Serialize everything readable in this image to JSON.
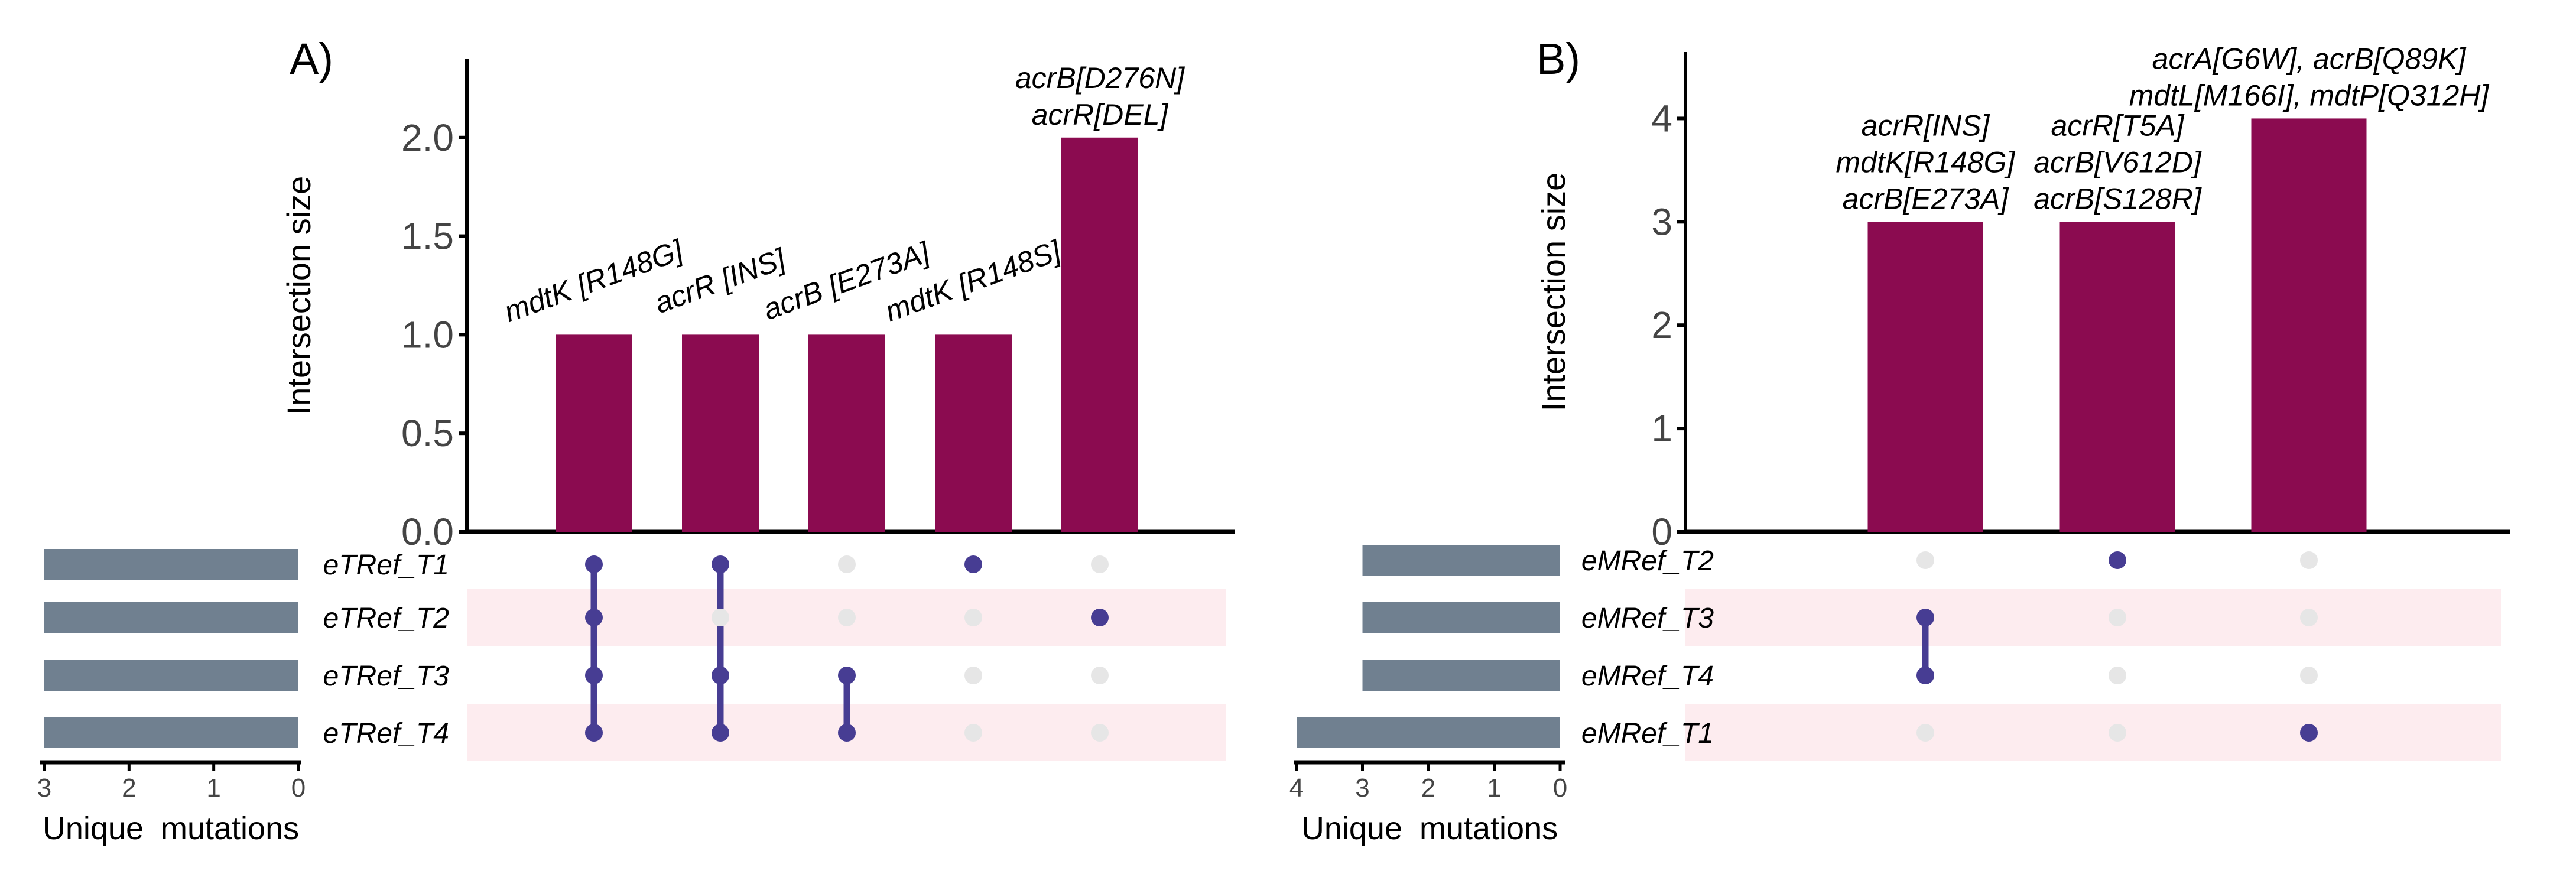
{
  "colors": {
    "bar": "#8b0b50",
    "setbar": "#708090",
    "dot_active": "#473d93",
    "dot_inactive": "#e6e6e6",
    "stripe": "#fdecef"
  },
  "chart_data": [
    {
      "type": "bar",
      "panel_letter": "A)",
      "ylabel": "Intersection size",
      "ylim": [
        0,
        2.35
      ],
      "yticks": [
        "0.0",
        "0.5",
        "1.0",
        "1.5",
        "2.0"
      ],
      "categories": [
        "mdtK [R148G]",
        "acrR [INS]",
        "acrB [E273A]",
        "mdtK [R148S]",
        "acrB[D276N] acrR[DEL]"
      ],
      "values": [
        1,
        1,
        1,
        1,
        2
      ],
      "bar_labels": [
        {
          "lines": [
            "mdtK [R148G]"
          ],
          "rotated": true
        },
        {
          "lines": [
            "acrR [INS]"
          ],
          "rotated": true
        },
        {
          "lines": [
            "acrB [E273A]"
          ],
          "rotated": true
        },
        {
          "lines": [
            "mdtK [R148S]"
          ],
          "rotated": true
        },
        {
          "lines": [
            "acrB[D276N]",
            "acrR[DEL]"
          ],
          "rotated": false
        }
      ],
      "sets": [
        "eTRef_T1",
        "eTRef_T2",
        "eTRef_T3",
        "eTRef_T4"
      ],
      "set_sizes": [
        3,
        3,
        3,
        3
      ],
      "membership": [
        [
          true,
          true,
          true,
          true
        ],
        [
          true,
          false,
          true,
          true
        ],
        [
          false,
          false,
          true,
          true
        ],
        [
          true,
          false,
          false,
          false
        ],
        [
          false,
          true,
          false,
          false
        ]
      ],
      "set_axis": {
        "title": "Unique mutations",
        "max": 3,
        "ticks": [
          "3",
          "2",
          "1",
          "0"
        ]
      }
    },
    {
      "type": "bar",
      "panel_letter": "B)",
      "ylabel": "Intersection size",
      "ylim": [
        0,
        4.55
      ],
      "yticks": [
        "0",
        "1",
        "2",
        "3",
        "4"
      ],
      "categories": [
        "acrR[INS] mdtK[R148G] acrB[E273A]",
        "acrR[T5A] acrB[V612D] acrB[S128R]",
        "acrA[G6W], acrB[Q89K] mdtL[M166I], mdtP[Q312H]"
      ],
      "values": [
        3,
        3,
        4
      ],
      "bar_labels": [
        {
          "lines": [
            "acrR[INS]",
            "mdtK[R148G]",
            "acrB[E273A]"
          ],
          "rotated": false
        },
        {
          "lines": [
            "acrR[T5A]",
            "acrB[V612D]",
            "acrB[S128R]"
          ],
          "rotated": false
        },
        {
          "lines": [
            "acrA[G6W], acrB[Q89K]",
            "mdtL[M166I], mdtP[Q312H]"
          ],
          "rotated": false
        }
      ],
      "sets": [
        "eMRef_T2",
        "eMRef_T3",
        "eMRef_T4",
        "eMRef_T1"
      ],
      "set_sizes": [
        3,
        3,
        3,
        4
      ],
      "membership": [
        [
          false,
          true,
          true,
          false
        ],
        [
          true,
          false,
          false,
          false
        ],
        [
          false,
          false,
          false,
          true
        ]
      ],
      "set_axis": {
        "title": "Unique mutations",
        "max": 4,
        "ticks": [
          "4",
          "3",
          "2",
          "1",
          "0"
        ]
      }
    }
  ]
}
